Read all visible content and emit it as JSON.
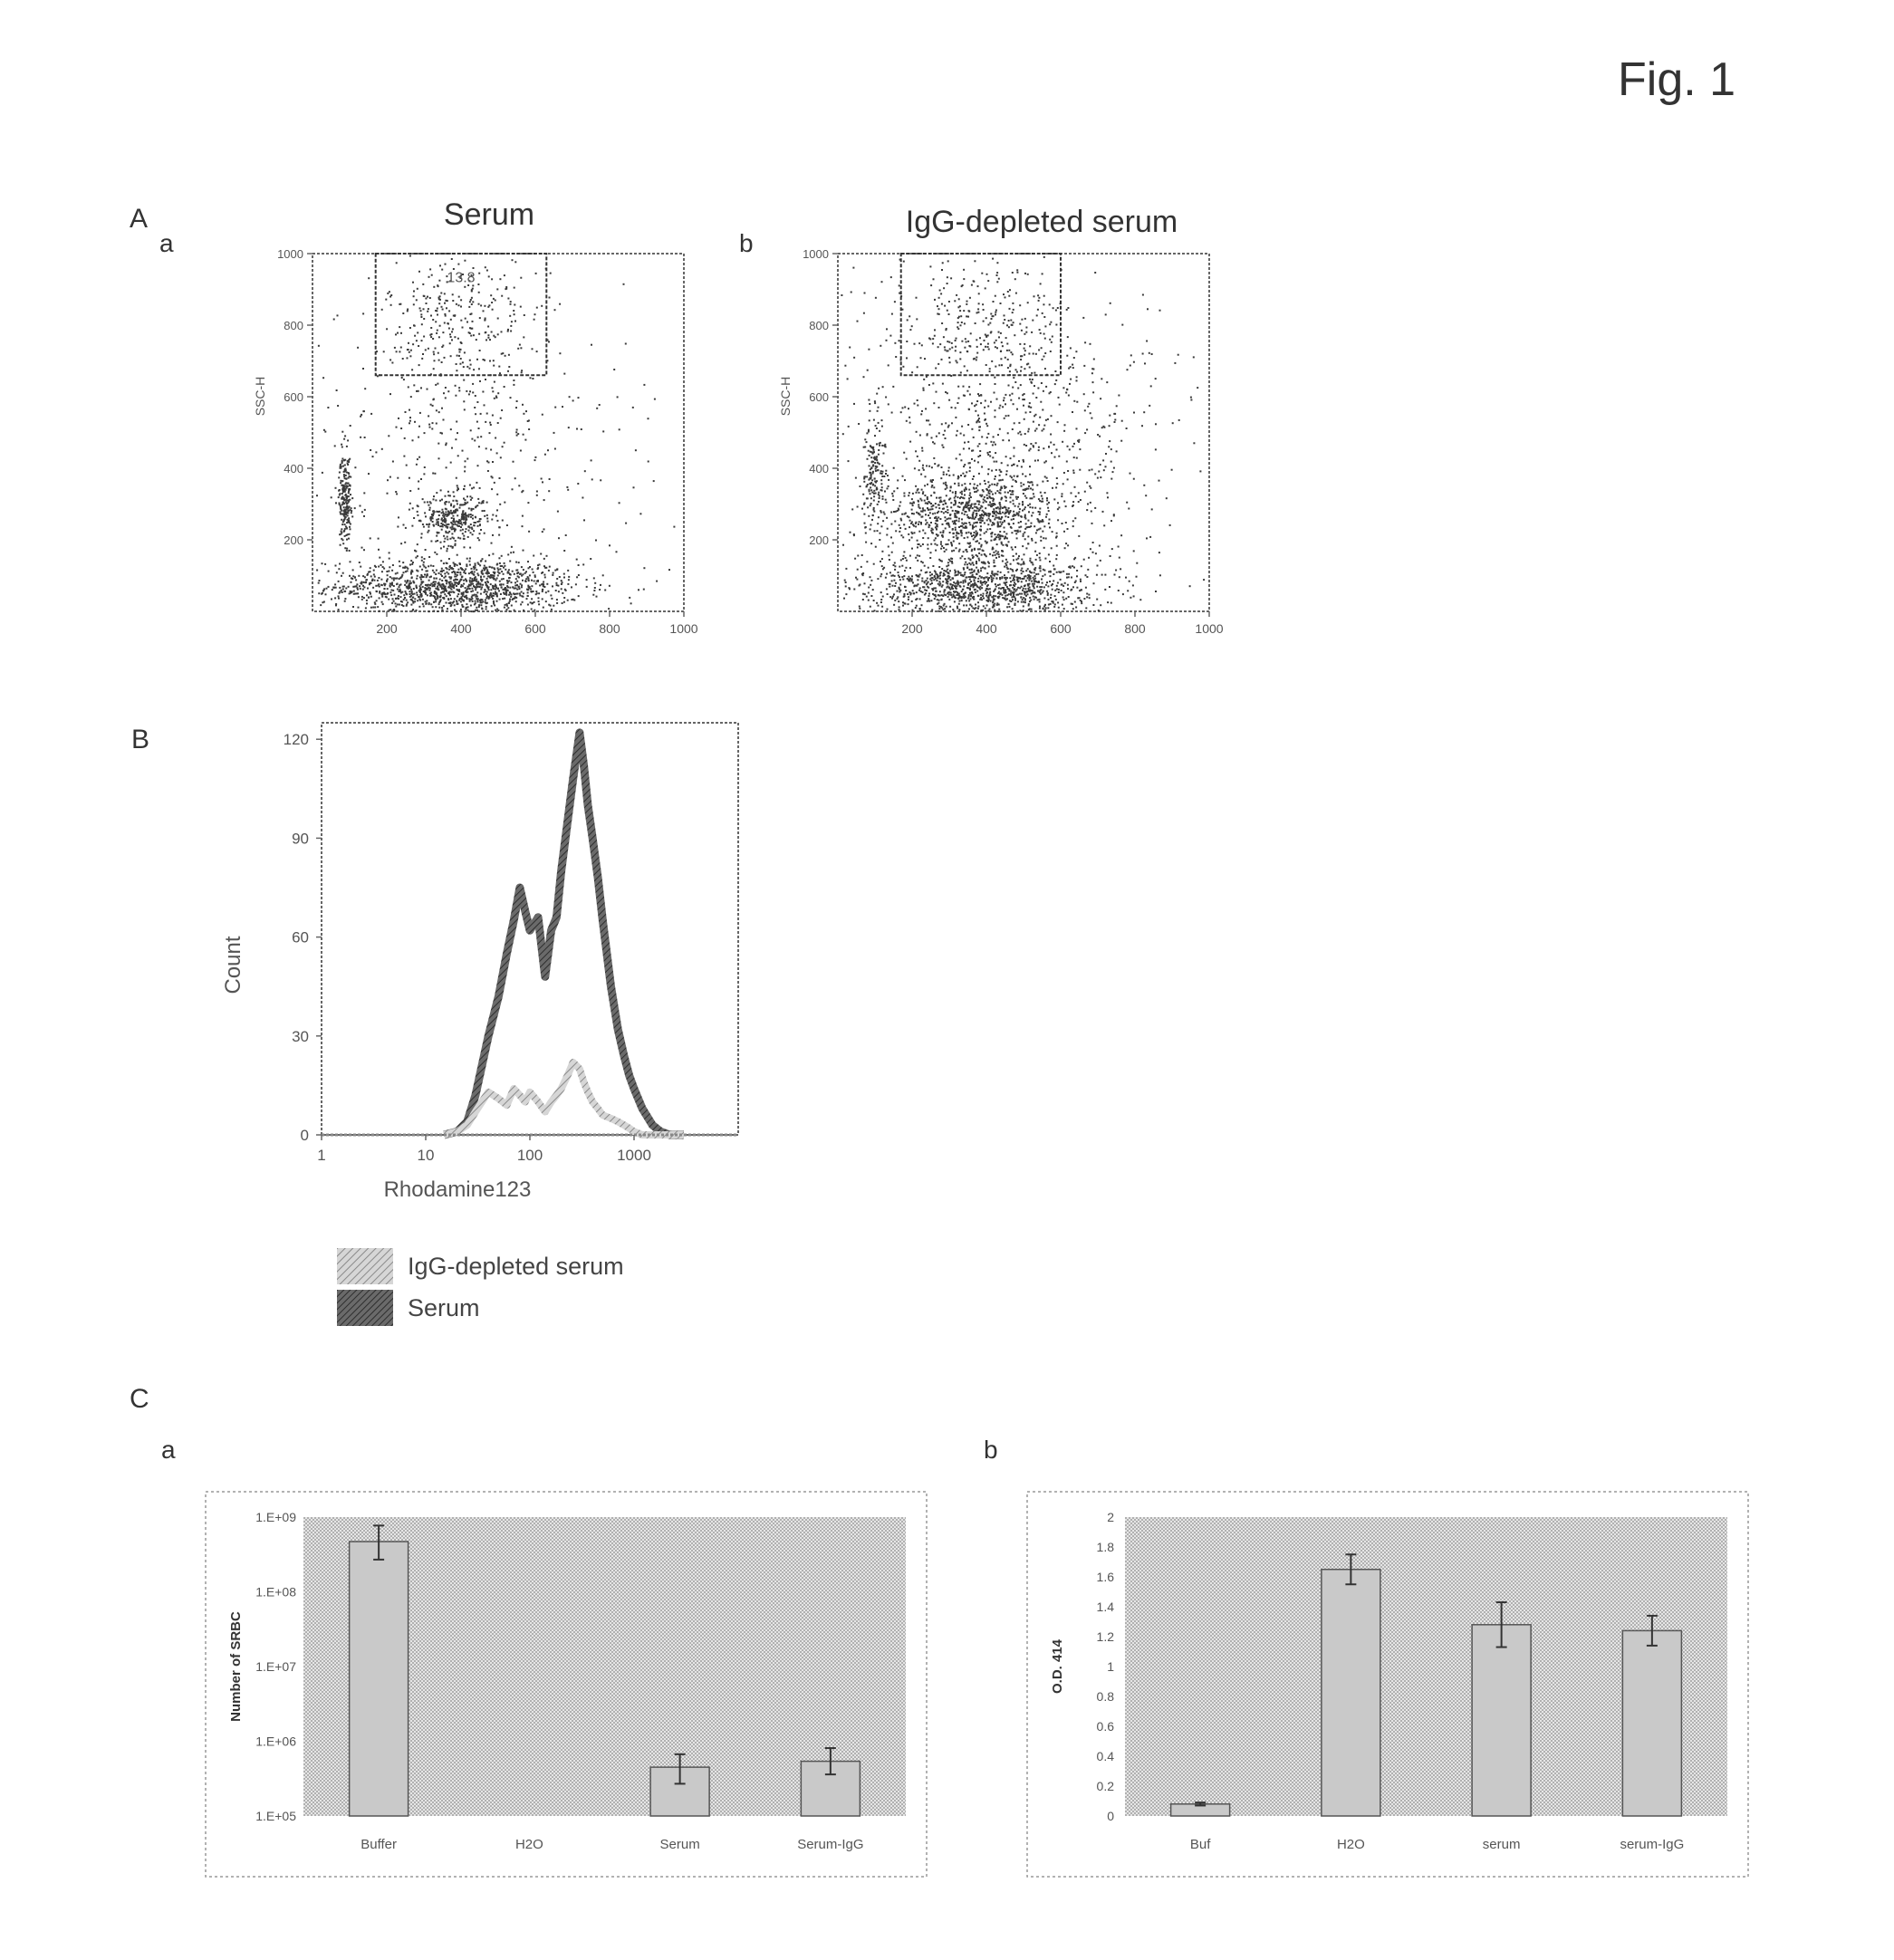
{
  "figure": {
    "title": "Fig. 1",
    "panel_A": "A",
    "panel_B": "B",
    "panel_C": "C",
    "sub_a_A": "a",
    "sub_b_A": "b",
    "sub_a_C": "a",
    "sub_b_C": "b"
  },
  "colors": {
    "dots": "#3a3a3a",
    "serum_hist": "#3d3d3d",
    "igg_hist": "#a0a0a0",
    "bar_fill": "#c9c9c9",
    "plot_bg": "#dcdcdc"
  },
  "chart_data": [
    {
      "id": "A-a",
      "type": "scatter",
      "title": "Serum",
      "xlabel": "",
      "ylabel": "SSC-H",
      "xlim": [
        0,
        1000
      ],
      "ylim": [
        0,
        1000
      ],
      "x_ticks": [
        "200",
        "400",
        "600",
        "800",
        "1000"
      ],
      "y_ticks": [
        "200",
        "400",
        "600",
        "800",
        "1000"
      ],
      "gate": {
        "x": [
          170,
          630
        ],
        "y": [
          660,
          1000
        ],
        "label": "13.8"
      },
      "populations": [
        {
          "cx": 380,
          "cy": 70,
          "sx": 170,
          "sy": 40,
          "n": 1300
        },
        {
          "cx": 380,
          "cy": 260,
          "sx": 45,
          "sy": 35,
          "n": 300
        },
        {
          "cx": 85,
          "cy": 320,
          "sx": 8,
          "sy": 60,
          "n": 220
        },
        {
          "cx": 380,
          "cy": 820,
          "sx": 90,
          "sy": 110,
          "n": 260
        },
        {
          "cx": 400,
          "cy": 450,
          "sx": 220,
          "sy": 250,
          "n": 520
        }
      ]
    },
    {
      "id": "A-b",
      "type": "scatter",
      "title": "IgG-depleted serum",
      "xlabel": "",
      "ylabel": "SSC-H",
      "xlim": [
        0,
        1000
      ],
      "ylim": [
        0,
        1000
      ],
      "x_ticks": [
        "200",
        "400",
        "600",
        "800",
        "1000"
      ],
      "y_ticks": [
        "200",
        "400",
        "600",
        "800",
        "1000"
      ],
      "gate": {
        "x": [
          170,
          600
        ],
        "y": [
          660,
          1000
        ],
        "label": ""
      },
      "populations": [
        {
          "cx": 380,
          "cy": 70,
          "sx": 160,
          "sy": 45,
          "n": 1100
        },
        {
          "cx": 360,
          "cy": 280,
          "sx": 110,
          "sy": 60,
          "n": 800
        },
        {
          "cx": 95,
          "cy": 380,
          "sx": 15,
          "sy": 80,
          "n": 150
        },
        {
          "cx": 380,
          "cy": 800,
          "sx": 100,
          "sy": 110,
          "n": 230
        },
        {
          "cx": 420,
          "cy": 450,
          "sx": 230,
          "sy": 250,
          "n": 1000
        }
      ]
    },
    {
      "id": "B",
      "type": "area",
      "xlabel": "Rhodamine123",
      "ylabel": "Count",
      "x_scale": "log",
      "xlim": [
        1,
        10000
      ],
      "ylim": [
        0,
        125
      ],
      "x_ticks": [
        "1",
        "10",
        "100",
        "1000"
      ],
      "y_ticks": [
        "0",
        "30",
        "60",
        "90",
        "120"
      ],
      "series": [
        {
          "name": "Serum",
          "x": [
            15,
            20,
            25,
            30,
            40,
            50,
            60,
            70,
            80,
            90,
            100,
            120,
            140,
            160,
            180,
            200,
            230,
            260,
            300,
            330,
            360,
            400,
            450,
            500,
            600,
            700,
            800,
            900,
            1000,
            1200,
            1500,
            1800,
            2200,
            3000
          ],
          "y": [
            0,
            1,
            4,
            12,
            30,
            42,
            55,
            65,
            75,
            68,
            62,
            66,
            48,
            62,
            66,
            80,
            95,
            108,
            122,
            112,
            100,
            90,
            78,
            65,
            45,
            32,
            24,
            18,
            14,
            8,
            3,
            1,
            0,
            0
          ]
        },
        {
          "name": "IgG-depleted serum",
          "x": [
            15,
            20,
            25,
            30,
            40,
            50,
            60,
            70,
            80,
            90,
            100,
            120,
            140,
            160,
            180,
            200,
            230,
            260,
            300,
            330,
            360,
            400,
            450,
            500,
            600,
            700,
            800,
            900,
            1000,
            1200,
            1500,
            1800,
            2200,
            3000
          ],
          "y": [
            0,
            1,
            3,
            7,
            13,
            11,
            9,
            14,
            12,
            10,
            13,
            10,
            7,
            10,
            12,
            14,
            18,
            22,
            20,
            16,
            13,
            10,
            8,
            6,
            5,
            4,
            3,
            2,
            1,
            0,
            0,
            0,
            0,
            0
          ]
        }
      ],
      "legend": [
        "IgG-depleted serum",
        "Serum"
      ]
    },
    {
      "id": "C-a",
      "type": "bar",
      "xlabel": "",
      "ylabel": "Number of SRBC",
      "y_scale": "log",
      "ylim": [
        100000,
        1000000000
      ],
      "y_ticks": [
        "1.E+09",
        "1.E+08",
        "1.E+07",
        "1.E+06",
        "1.E+05"
      ],
      "categories": [
        "Buffer",
        "H2O",
        "Serum",
        "Serum-IgG"
      ],
      "values": [
        470000000,
        100000,
        450000,
        540000
      ],
      "errors_low": [
        200000000,
        0,
        180000,
        180000
      ],
      "errors_high": [
        300000000,
        0,
        220000,
        270000
      ]
    },
    {
      "id": "C-b",
      "type": "bar",
      "xlabel": "",
      "ylabel": "O.D. 414",
      "ylim": [
        0,
        2
      ],
      "y_ticks": [
        "0",
        "0.2",
        "0.4",
        "0.6",
        "0.8",
        "1",
        "1.2",
        "1.4",
        "1.6",
        "1.8",
        "2"
      ],
      "categories": [
        "Buf",
        "H2O",
        "serum",
        "serum-IgG"
      ],
      "values": [
        0.08,
        1.65,
        1.28,
        1.24
      ],
      "errors": [
        0.01,
        0.1,
        0.15,
        0.1
      ]
    }
  ]
}
